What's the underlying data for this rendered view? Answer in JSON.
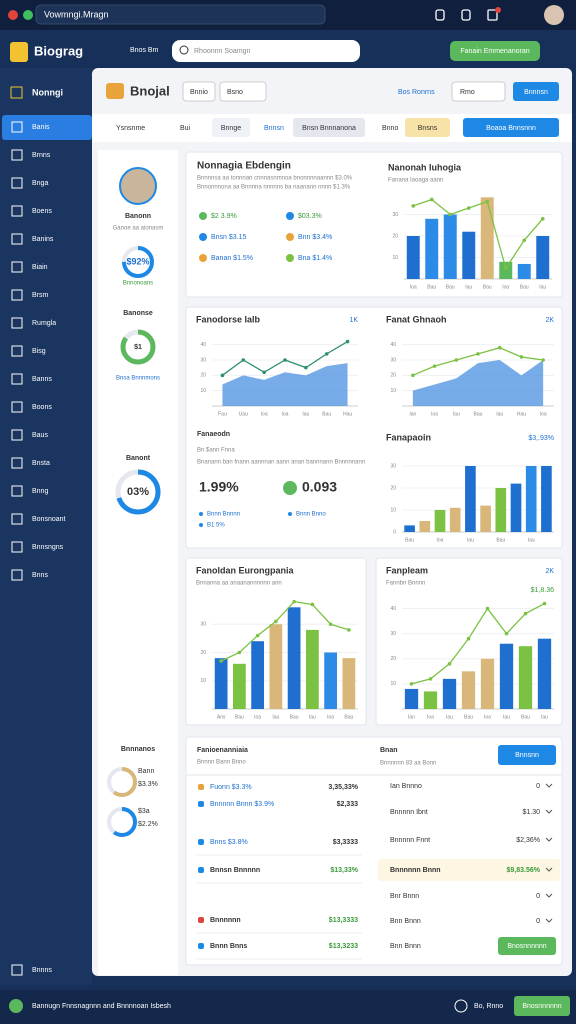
{
  "window_title": "Vowmngi.Mragn",
  "header": {
    "logo": "Biograg",
    "link": "Bnos Bm",
    "search": "Rhoonnn Soamgn",
    "button": "Fanain Emmenanoran"
  },
  "sidebar": {
    "title": "Nonngi",
    "items": [
      "Banis",
      "Brnns",
      "Bnga",
      "Boens",
      "Banins",
      "Biain",
      "Brsm",
      "Rumgla",
      "Bisg",
      "Banns",
      "Boons",
      "Baus",
      "Bnsta",
      "Bnng",
      "Bonsnoant",
      "Bnnsngns",
      "Bnns"
    ],
    "footer": "Bnnns"
  },
  "panel": {
    "title": "Bnojal",
    "select1": "Bnnio",
    "select2": "Bsno",
    "link": "Bos Ronrns",
    "select3": "Rmo",
    "button": "Bnnnsn"
  },
  "filters": [
    "Ysnsnme",
    "Bui",
    "Bnnge",
    "Bnnsn",
    "Bnsn Bnnnanona",
    "Bnno",
    "Bnsns",
    "Boaoa Bnnsnnn"
  ],
  "profile": {
    "name": "Banonn",
    "subtitle": "Ganoe aa aionasm",
    "gauge1": "$92%",
    "gauge1_label": "Bnnonoans",
    "section2": "Banonse",
    "gauge2": "$1",
    "gauge2_label": "Bnsa Bnnnmons",
    "section3": "Banont",
    "gauge3": "03%",
    "section4": "Bnnnanos",
    "ring1_label": "Bann",
    "ring1_value": "$3.3%",
    "ring2_label": "$3a",
    "ring2_value": "$2.2%"
  },
  "summary": {
    "title": "Nonnagia Ebdengin",
    "lines": [
      "Bnnnnsa aa tonnnan cnnnasnmnoa bnonnnnaannn $3.0%",
      "Bnnonnnona aa Bnnnna nnnnns ba naanann nnnn $1.3%"
    ],
    "items": [
      "$2 3.9%",
      "$03.3%",
      "Bnsn $3.15",
      "Bnn $3.4%",
      "Banan $1.5%",
      "Bna $1.4%"
    ]
  },
  "kpis": {
    "title": "Fanaeodn",
    "subtitle": "Bn $ann Fnna",
    "line": "Bnanann ban fnann aannnan aann anan bannnann Bnnnnnann",
    "value1": "1.99%",
    "value2": "0.093",
    "items": [
      "Bnnn Bnnnn",
      "Bnnn Bnno",
      "B1 5%"
    ]
  },
  "table": {
    "title": "Fanioenanniaia",
    "subtitle": "Bnnnn Bann Bnno",
    "left_rows": [
      {
        "label": "Fuonn $3.3%",
        "value": "3,35,33%"
      },
      {
        "label": "Bnnnnn Bnnn $3.9%",
        "value": "$2,333"
      },
      {
        "label": "Bnns $3.8%",
        "value": "$3,3333"
      },
      {
        "label": "Bnnsn Bnnnnn",
        "value": "$13,33%"
      },
      {
        "label": "Bnnnnnn",
        "value": "$13,3333"
      },
      {
        "label": "Bnnn Bnns",
        "value": "$13,3233"
      }
    ],
    "right_title": "Bnan",
    "right_subtitle": "Bnnnnnn 83 aa Bonn",
    "right_button": "Bnnsnn",
    "right_rows": [
      {
        "label": "Ian Bnnno",
        "value": "0"
      },
      {
        "label": "Bnnnnn Ibnt",
        "value": "$1.30"
      },
      {
        "label": "Bnnnnn Fnnt",
        "value": "$2,36%"
      },
      {
        "label": "Bnnnnnn Bnnn",
        "value": "$9,83.56%"
      },
      {
        "label": "Bnr Bnnn",
        "value": "0"
      },
      {
        "label": "Bnn Bnnn",
        "value": "0"
      }
    ],
    "right_last": "Bnn Bnnn",
    "right_last_button": "Bnosnnnnnn"
  },
  "footer": {
    "text": "Bannugn Fnnsnagnnn and Bnnnnoan Isbesh",
    "link": "Bo, Rnno",
    "button": "Bnosnnnnnn"
  },
  "chart_data": [
    {
      "type": "bar",
      "title": "Nanonah Iuhogia",
      "subtitle": "Fanana Iaoaga aann",
      "categories": [
        "Ioa",
        "Bau",
        "Bau",
        "Iau",
        "Bau",
        "Ioa",
        "Bau",
        "Iau"
      ],
      "values": [
        20,
        28,
        30,
        22,
        38,
        8,
        7,
        20
      ],
      "colors": [
        "#1e6fd0",
        "#2b8be6",
        "#2b8be6",
        "#1e6fd0",
        "#d9b77a",
        "#5cb85c",
        "#2b8be6",
        "#1e6fd0"
      ],
      "line_values": [
        34,
        37,
        30,
        33,
        36,
        5,
        18,
        28
      ],
      "line_color": "#7cc242",
      "ylim": [
        0,
        40
      ],
      "yticks": [
        10,
        20,
        30
      ],
      "grid": true
    },
    {
      "type": "area",
      "title": "Fanodorse Ialb",
      "note": "1K",
      "categories": [
        "Fau",
        "Uau",
        "Ioa",
        "Ioa",
        "Iau",
        "Bau",
        "Hau"
      ],
      "values": [
        14,
        20,
        17,
        22,
        20,
        26,
        28
      ],
      "color": "#4a90e2",
      "line_values": [
        20,
        30,
        22,
        30,
        25,
        34,
        42
      ],
      "line_color": "#2f8f6f",
      "ylim": [
        0,
        45
      ],
      "yticks": [
        10,
        20,
        30,
        40
      ],
      "grid": true
    },
    {
      "type": "area",
      "title": "Fanat Ghnaoh",
      "note": "2K",
      "categories": [
        "Ian",
        "Ioa",
        "Iau",
        "Bau",
        "Iau",
        "Hau",
        "Ioa"
      ],
      "values": [
        10,
        14,
        18,
        28,
        30,
        20,
        30
      ],
      "color": "#4a90e2",
      "line_values": [
        20,
        26,
        30,
        34,
        38,
        32,
        30
      ],
      "line_color": "#7cc242",
      "ylim": [
        0,
        45
      ],
      "yticks": [
        10,
        20,
        30,
        40
      ],
      "grid": true
    },
    {
      "type": "bar",
      "title": "Fanapaoin",
      "note": "$3,.93%",
      "categories": [
        "Bau",
        null,
        "Ioa",
        null,
        "Iau",
        null,
        "Bau",
        null,
        "Iau",
        null
      ],
      "values": [
        3,
        5,
        10,
        11,
        30,
        12,
        20,
        22,
        30,
        30
      ],
      "colors": [
        "#1e6fd0",
        "#d9b77a",
        "#7cc242",
        "#d9b77a",
        "#1e6fd0",
        "#d9b77a",
        "#7cc242",
        "#1e6fd0",
        "#2b8be6",
        "#1e6fd0"
      ],
      "ylim": [
        0,
        35
      ],
      "yticks": [
        0,
        10,
        20,
        30
      ],
      "grid": true
    },
    {
      "type": "bar",
      "title": "Fanoldan Eurongpania",
      "subtitle": "Bnnanna aa anaanannnnnn ann",
      "categories": [
        "Ans",
        "Bau",
        "Ioa",
        "Iau",
        "Bau",
        "Iau",
        "Ioa",
        "Bau"
      ],
      "values": [
        18,
        16,
        24,
        30,
        36,
        28,
        20,
        18
      ],
      "colors": [
        "#1e6fd0",
        "#7cc242",
        "#1e6fd0",
        "#d9b77a",
        "#1e6fd0",
        "#7cc242",
        "#2b8be6",
        "#d9b77a"
      ],
      "line_values": [
        17,
        20,
        26,
        31,
        38,
        37,
        30,
        28
      ],
      "line_color": "#7cc242",
      "ylim": [
        0,
        40
      ],
      "yticks": [
        10,
        20,
        30
      ],
      "grid": true
    },
    {
      "type": "bar",
      "title": "Fanpleam",
      "subtitle": "Fannbn Bnnnn",
      "note": "2K",
      "value_note": "$1,8.36",
      "categories": [
        "Ian",
        "Ioa",
        "Iau",
        "Bau",
        "Ioa",
        "Iau",
        "Bau",
        "Iau"
      ],
      "values": [
        8,
        7,
        12,
        15,
        20,
        26,
        25,
        28
      ],
      "colors": [
        "#1e6fd0",
        "#7cc242",
        "#1e6fd0",
        "#d9b77a",
        "#d9b77a",
        "#1e6fd0",
        "#7cc242",
        "#1e6fd0"
      ],
      "line_values": [
        10,
        12,
        18,
        28,
        40,
        30,
        38,
        42
      ],
      "line_color": "#7cc242",
      "ylim": [
        0,
        45
      ],
      "yticks": [
        10,
        20,
        30,
        40
      ],
      "grid": true
    }
  ]
}
